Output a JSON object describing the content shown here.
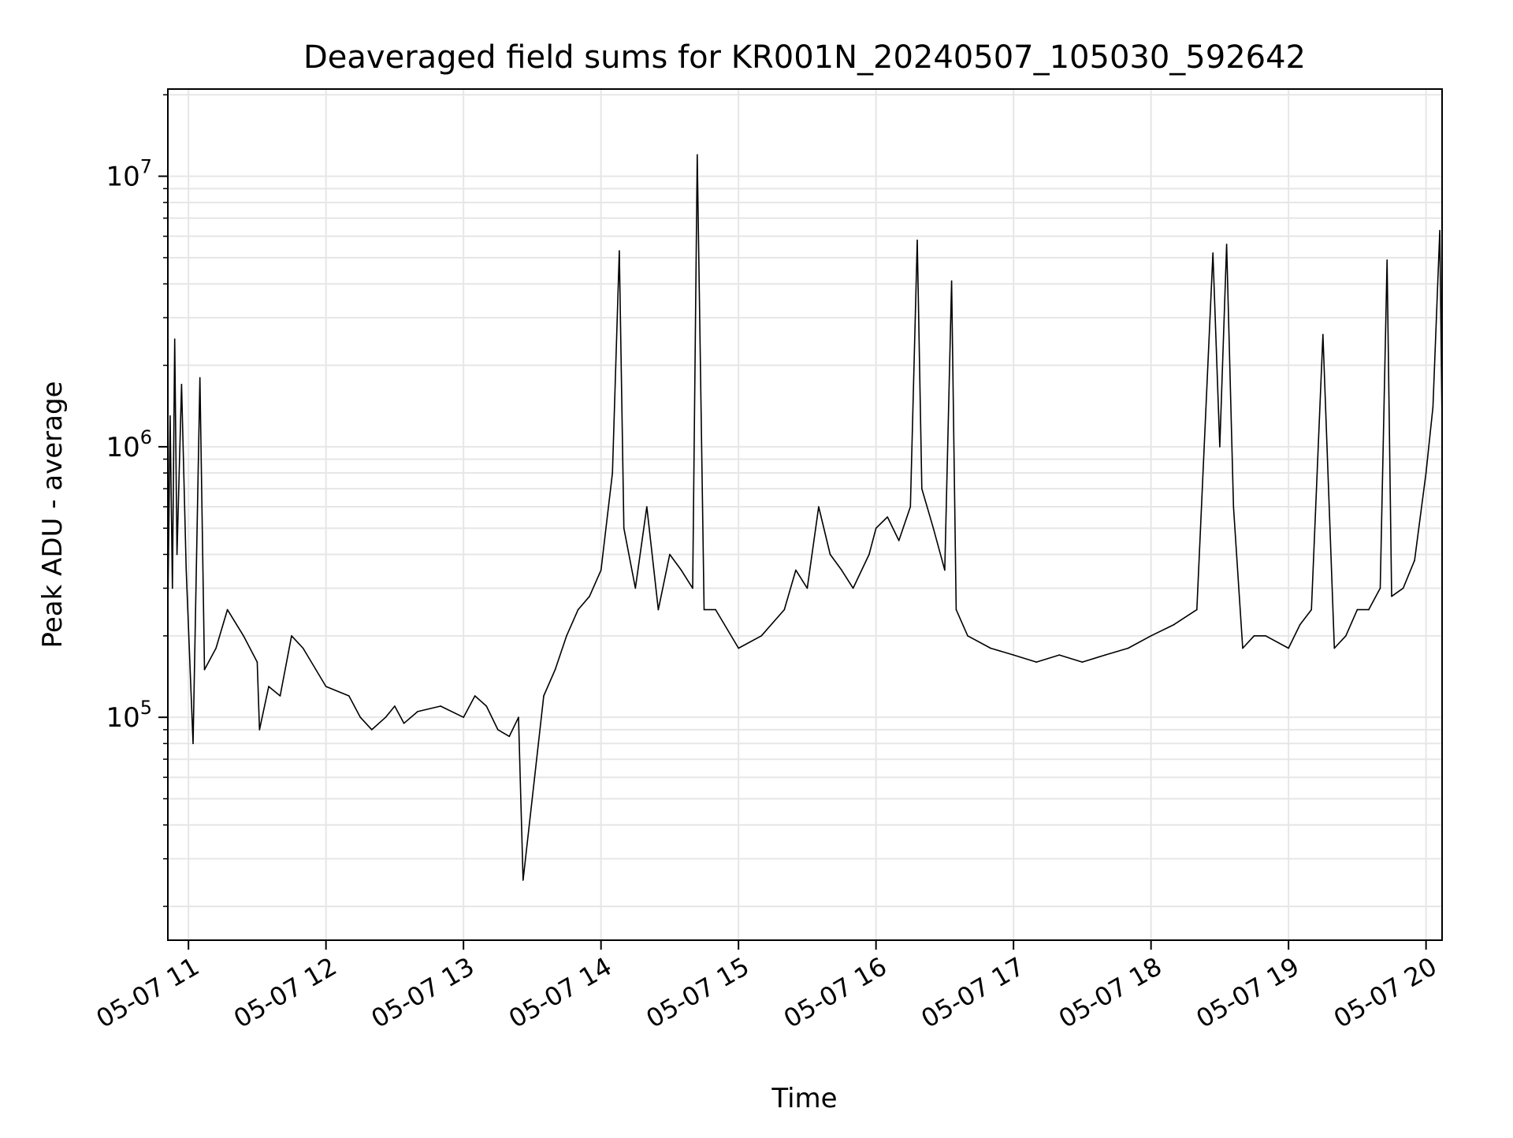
{
  "chart_data": {
    "type": "line",
    "title": "Deaveraged field sums for KR001N_20240507_105030_592642",
    "xlabel": "Time",
    "ylabel": "Peak ADU - average",
    "yscale": "log",
    "ylim": [
      15000,
      21000000
    ],
    "xlim": [
      "2024-05-07 10:51",
      "2024-05-07 20:07"
    ],
    "grid": true,
    "line_color": "#000000",
    "grid_color": "#e6e6e6",
    "x_ticks": [
      {
        "x": "2024-05-07 11:00",
        "label": "05-07 11"
      },
      {
        "x": "2024-05-07 12:00",
        "label": "05-07 12"
      },
      {
        "x": "2024-05-07 13:00",
        "label": "05-07 13"
      },
      {
        "x": "2024-05-07 14:00",
        "label": "05-07 14"
      },
      {
        "x": "2024-05-07 15:00",
        "label": "05-07 15"
      },
      {
        "x": "2024-05-07 16:00",
        "label": "05-07 16"
      },
      {
        "x": "2024-05-07 17:00",
        "label": "05-07 17"
      },
      {
        "x": "2024-05-07 18:00",
        "label": "05-07 18"
      },
      {
        "x": "2024-05-07 19:00",
        "label": "05-07 19"
      },
      {
        "x": "2024-05-07 20:00",
        "label": "05-07 20"
      }
    ],
    "y_ticks": [
      {
        "value": 100000,
        "base": "10",
        "exp": "5"
      },
      {
        "value": 1000000,
        "base": "10",
        "exp": "6"
      },
      {
        "value": 10000000,
        "base": "10",
        "exp": "7"
      }
    ],
    "series": [
      {
        "x": [
          "2024-05-07 10:51",
          "2024-05-07 10:52",
          "2024-05-07 10:53",
          "2024-05-07 10:54",
          "2024-05-07 10:55",
          "2024-05-07 10:57",
          "2024-05-07 10:59",
          "2024-05-07 11:02",
          "2024-05-07 11:05",
          "2024-05-07 11:07",
          "2024-05-07 11:12",
          "2024-05-07 11:17",
          "2024-05-07 11:24",
          "2024-05-07 11:30",
          "2024-05-07 11:31",
          "2024-05-07 11:35",
          "2024-05-07 11:40",
          "2024-05-07 11:45",
          "2024-05-07 11:50",
          "2024-05-07 12:00",
          "2024-05-07 12:10",
          "2024-05-07 12:15",
          "2024-05-07 12:20",
          "2024-05-07 12:26",
          "2024-05-07 12:30",
          "2024-05-07 12:34",
          "2024-05-07 12:40",
          "2024-05-07 12:50",
          "2024-05-07 13:00",
          "2024-05-07 13:05",
          "2024-05-07 13:10",
          "2024-05-07 13:15",
          "2024-05-07 13:20",
          "2024-05-07 13:24",
          "2024-05-07 13:26",
          "2024-05-07 13:35",
          "2024-05-07 13:40",
          "2024-05-07 13:45",
          "2024-05-07 13:50",
          "2024-05-07 13:55",
          "2024-05-07 14:00",
          "2024-05-07 14:05",
          "2024-05-07 14:08",
          "2024-05-07 14:10",
          "2024-05-07 14:15",
          "2024-05-07 14:20",
          "2024-05-07 14:25",
          "2024-05-07 14:30",
          "2024-05-07 14:35",
          "2024-05-07 14:40",
          "2024-05-07 14:42",
          "2024-05-07 14:45",
          "2024-05-07 14:50",
          "2024-05-07 15:00",
          "2024-05-07 15:10",
          "2024-05-07 15:20",
          "2024-05-07 15:25",
          "2024-05-07 15:30",
          "2024-05-07 15:35",
          "2024-05-07 15:40",
          "2024-05-07 15:45",
          "2024-05-07 15:50",
          "2024-05-07 15:57",
          "2024-05-07 16:00",
          "2024-05-07 16:05",
          "2024-05-07 16:10",
          "2024-05-07 16:15",
          "2024-05-07 16:18",
          "2024-05-07 16:20",
          "2024-05-07 16:25",
          "2024-05-07 16:30",
          "2024-05-07 16:33",
          "2024-05-07 16:35",
          "2024-05-07 16:40",
          "2024-05-07 16:50",
          "2024-05-07 17:00",
          "2024-05-07 17:10",
          "2024-05-07 17:20",
          "2024-05-07 17:30",
          "2024-05-07 17:40",
          "2024-05-07 17:50",
          "2024-05-07 18:00",
          "2024-05-07 18:10",
          "2024-05-07 18:20",
          "2024-05-07 18:27",
          "2024-05-07 18:30",
          "2024-05-07 18:33",
          "2024-05-07 18:36",
          "2024-05-07 18:40",
          "2024-05-07 18:45",
          "2024-05-07 18:50",
          "2024-05-07 19:00",
          "2024-05-07 19:05",
          "2024-05-07 19:10",
          "2024-05-07 19:15",
          "2024-05-07 19:20",
          "2024-05-07 19:25",
          "2024-05-07 19:30",
          "2024-05-07 19:35",
          "2024-05-07 19:40",
          "2024-05-07 19:43",
          "2024-05-07 19:45",
          "2024-05-07 19:50",
          "2024-05-07 19:55",
          "2024-05-07 20:00",
          "2024-05-07 20:03",
          "2024-05-07 20:06",
          "2024-05-07 20:07"
        ],
        "y": [
          250000,
          1300000,
          300000,
          2500000,
          400000,
          1700000,
          350000,
          80000,
          1800000,
          150000,
          180000,
          250000,
          200000,
          160000,
          90000,
          130000,
          120000,
          200000,
          180000,
          130000,
          120000,
          100000,
          90000,
          100000,
          110000,
          95000,
          105000,
          110000,
          100000,
          120000,
          110000,
          90000,
          85000,
          100000,
          25000,
          120000,
          150000,
          200000,
          250000,
          280000,
          350000,
          800000,
          5300000,
          500000,
          300000,
          600000,
          250000,
          400000,
          350000,
          300000,
          12000000,
          250000,
          250000,
          180000,
          200000,
          250000,
          350000,
          300000,
          600000,
          400000,
          350000,
          300000,
          400000,
          500000,
          550000,
          450000,
          600000,
          5800000,
          700000,
          500000,
          350000,
          4100000,
          250000,
          200000,
          180000,
          170000,
          160000,
          170000,
          160000,
          170000,
          180000,
          200000,
          220000,
          250000,
          5200000,
          1000000,
          5600000,
          600000,
          180000,
          200000,
          200000,
          180000,
          220000,
          250000,
          2600000,
          180000,
          200000,
          250000,
          250000,
          300000,
          4900000,
          280000,
          300000,
          380000,
          800000,
          1400000,
          6300000,
          1200000
        ]
      }
    ]
  }
}
